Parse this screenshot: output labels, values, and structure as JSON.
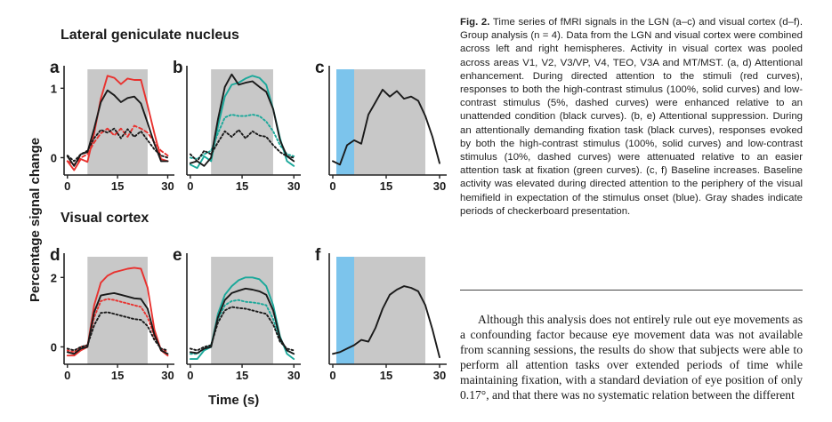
{
  "figure": {
    "section_top": "Lateral geniculate nucleus",
    "section_bottom": "Visual cortex",
    "ylabel": "Percentage signal change",
    "xlabel": "Time (s)"
  },
  "caption": {
    "label": "Fig. 2.",
    "text": " Time series of fMRI signals in the LGN (a–c) and visual cortex (d–f). Group analysis (n = 4). Data from the LGN and visual cortex were combined across left and right hemispheres. Activity in visual cortex was pooled across areas V1, V2, V3/VP, V4, TEO, V3A and MT/MST. (a, d) Attentional enhancement. During directed attention to the stimuli (red curves), responses to both the high-contrast stimulus (100%, solid curves) and low-contrast stimulus (5%, dashed curves) were enhanced relative to an unattended condition (black curves). (b, e) Attentional suppression. During an attentionally demanding fixation task (black curves), responses evoked by both the high-contrast stimulus (100%, solid curves) and low-contrast stimulus (10%, dashed curves) were attenuated relative to an easier attention task at fixation (green curves). (c, f) Baseline increases. Baseline activity was elevated during directed attention to the periphery of the visual hemifield in expectation of the stimulus onset (blue). Gray shades indicate periods of checkerboard presentation."
  },
  "body_text": "Although this analysis does not entirely rule out eye movements as a confounding factor because eye movement data was not available from scanning sessions, the results do show that subjects were able to perform all attention tasks over extended periods of time while maintaining fixation, with a standard deviation of eye position of only 0.17°, and that there was no systematic relation between the different",
  "colors": {
    "red": "#e8322f",
    "green": "#1aa89a",
    "black": "#1a1a1a",
    "gray_shade": "#c8c8c8",
    "blue_shade": "#7cc4ec"
  },
  "chart_data": [
    {
      "panel": "a",
      "type": "line",
      "xticks": [
        "0",
        "15",
        "30"
      ],
      "yticks": [
        "0",
        "1"
      ],
      "xlim": [
        -1,
        32
      ],
      "ylim": [
        -0.25,
        1.35
      ],
      "shade": [
        [
          6,
          24
        ]
      ],
      "series": [
        {
          "color": "red",
          "style": "solid",
          "x": [
            0,
            2,
            4,
            6,
            8,
            10,
            12,
            14,
            16,
            18,
            20,
            22,
            24,
            26,
            28,
            30
          ],
          "y": [
            -0.05,
            -0.18,
            -0.02,
            -0.06,
            0.35,
            0.85,
            1.18,
            1.15,
            1.06,
            1.14,
            1.12,
            1.12,
            0.75,
            0.35,
            -0.02,
            -0.05
          ]
        },
        {
          "color": "red",
          "style": "dashed",
          "x": [
            0,
            2,
            4,
            6,
            8,
            10,
            12,
            14,
            16,
            18,
            20,
            22,
            24,
            26,
            28,
            30
          ],
          "y": [
            -0.05,
            -0.1,
            0.0,
            0.05,
            0.22,
            0.35,
            0.42,
            0.32,
            0.42,
            0.3,
            0.46,
            0.42,
            0.36,
            0.22,
            0.1,
            0.03
          ]
        },
        {
          "color": "black",
          "style": "solid",
          "x": [
            0,
            2,
            4,
            6,
            8,
            10,
            12,
            14,
            16,
            18,
            20,
            22,
            24,
            26,
            28,
            30
          ],
          "y": [
            0.02,
            -0.12,
            0.05,
            0.08,
            0.42,
            0.8,
            0.97,
            0.9,
            0.8,
            0.86,
            0.88,
            0.78,
            0.5,
            0.2,
            -0.05,
            -0.05
          ]
        },
        {
          "color": "black",
          "style": "dotted",
          "x": [
            0,
            2,
            4,
            6,
            8,
            10,
            12,
            14,
            16,
            18,
            20,
            22,
            24,
            26,
            28,
            30
          ],
          "y": [
            0.03,
            -0.05,
            0.05,
            0.1,
            0.28,
            0.4,
            0.36,
            0.42,
            0.28,
            0.41,
            0.3,
            0.38,
            0.25,
            0.12,
            0.03,
            0.0
          ]
        }
      ]
    },
    {
      "panel": "b",
      "type": "line",
      "xticks": [
        "0",
        "15",
        "30"
      ],
      "yticks": [],
      "xlim": [
        -1,
        32
      ],
      "ylim": [
        -0.25,
        1.35
      ],
      "shade": [
        [
          6,
          24
        ]
      ],
      "series": [
        {
          "color": "green",
          "style": "solid",
          "x": [
            0,
            2,
            4,
            6,
            8,
            10,
            12,
            14,
            16,
            18,
            20,
            22,
            24,
            26,
            28,
            30
          ],
          "y": [
            -0.1,
            -0.15,
            0.02,
            -0.05,
            0.45,
            0.88,
            1.05,
            1.08,
            1.14,
            1.18,
            1.15,
            1.05,
            0.7,
            0.28,
            -0.05,
            -0.12
          ]
        },
        {
          "color": "green",
          "style": "dotted",
          "x": [
            0,
            2,
            4,
            6,
            8,
            10,
            12,
            14,
            16,
            18,
            20,
            22,
            24,
            26,
            28,
            30
          ],
          "y": [
            0.0,
            -0.02,
            0.05,
            0.1,
            0.35,
            0.58,
            0.62,
            0.6,
            0.6,
            0.62,
            0.6,
            0.52,
            0.38,
            0.18,
            0.05,
            0.02
          ]
        },
        {
          "color": "black",
          "style": "solid",
          "x": [
            0,
            2,
            4,
            6,
            8,
            10,
            12,
            14,
            16,
            18,
            20,
            22,
            24,
            26,
            28,
            30
          ],
          "y": [
            -0.08,
            -0.05,
            -0.12,
            0.0,
            0.55,
            1.02,
            1.2,
            1.05,
            1.08,
            1.1,
            1.02,
            0.95,
            0.7,
            0.25,
            0.02,
            -0.05
          ]
        },
        {
          "color": "black",
          "style": "dotted",
          "x": [
            0,
            2,
            4,
            6,
            8,
            10,
            12,
            14,
            16,
            18,
            20,
            22,
            24,
            26,
            28,
            30
          ],
          "y": [
            0.05,
            -0.05,
            0.1,
            0.05,
            0.22,
            0.38,
            0.3,
            0.4,
            0.28,
            0.38,
            0.32,
            0.3,
            0.18,
            0.08,
            0.02,
            0.0
          ]
        }
      ]
    },
    {
      "panel": "c",
      "type": "line",
      "xticks": [
        "0",
        "15",
        "30"
      ],
      "yticks": [],
      "xlim": [
        -1,
        32
      ],
      "ylim": [
        -0.25,
        1.35
      ],
      "shade": [
        [
          6,
          26
        ]
      ],
      "blue_shade": [
        [
          1,
          6
        ]
      ],
      "series": [
        {
          "color": "black",
          "style": "solid",
          "x": [
            0,
            2,
            4,
            6,
            8,
            10,
            12,
            14,
            16,
            18,
            20,
            22,
            24,
            26,
            28,
            30
          ],
          "y": [
            -0.05,
            -0.1,
            0.18,
            0.25,
            0.2,
            0.62,
            0.8,
            0.98,
            0.88,
            0.96,
            0.85,
            0.88,
            0.82,
            0.6,
            0.3,
            -0.08
          ]
        }
      ]
    },
    {
      "panel": "d",
      "type": "line",
      "xticks": [
        "0",
        "15",
        "30"
      ],
      "yticks": [
        "0",
        "2"
      ],
      "xlim": [
        -1,
        32
      ],
      "ylim": [
        -0.5,
        2.75
      ],
      "shade": [
        [
          6,
          24
        ]
      ],
      "series": [
        {
          "color": "red",
          "style": "solid",
          "x": [
            0,
            2,
            4,
            6,
            8,
            10,
            12,
            14,
            16,
            18,
            20,
            22,
            24,
            26,
            28,
            30
          ],
          "y": [
            -0.25,
            -0.25,
            -0.1,
            0.0,
            1.2,
            1.85,
            2.05,
            2.15,
            2.2,
            2.25,
            2.28,
            2.25,
            1.7,
            0.5,
            -0.1,
            -0.25
          ]
        },
        {
          "color": "red",
          "style": "dotted",
          "x": [
            0,
            2,
            4,
            6,
            8,
            10,
            12,
            14,
            16,
            18,
            20,
            22,
            24,
            26,
            28,
            30
          ],
          "y": [
            -0.1,
            -0.15,
            0.0,
            0.05,
            0.85,
            1.32,
            1.38,
            1.35,
            1.3,
            1.25,
            1.2,
            1.15,
            0.85,
            0.3,
            -0.05,
            -0.15
          ]
        },
        {
          "color": "black",
          "style": "solid",
          "x": [
            0,
            2,
            4,
            6,
            8,
            10,
            12,
            14,
            16,
            18,
            20,
            22,
            24,
            26,
            28,
            30
          ],
          "y": [
            -0.15,
            -0.2,
            -0.05,
            0.0,
            1.0,
            1.48,
            1.52,
            1.55,
            1.5,
            1.45,
            1.4,
            1.38,
            1.1,
            0.35,
            -0.1,
            -0.2
          ]
        },
        {
          "color": "black",
          "style": "dotted",
          "x": [
            0,
            2,
            4,
            6,
            8,
            10,
            12,
            14,
            16,
            18,
            20,
            22,
            24,
            26,
            28,
            30
          ],
          "y": [
            -0.05,
            -0.1,
            0.0,
            0.05,
            0.62,
            0.98,
            1.0,
            0.95,
            0.9,
            0.85,
            0.8,
            0.78,
            0.6,
            0.2,
            -0.05,
            -0.1
          ]
        }
      ]
    },
    {
      "panel": "e",
      "type": "line",
      "xticks": [
        "0",
        "15",
        "30"
      ],
      "yticks": [],
      "xlim": [
        -1,
        32
      ],
      "ylim": [
        -0.5,
        2.75
      ],
      "shade": [
        [
          6,
          24
        ]
      ],
      "series": [
        {
          "color": "green",
          "style": "solid",
          "x": [
            0,
            2,
            4,
            6,
            8,
            10,
            12,
            14,
            16,
            18,
            20,
            22,
            24,
            26,
            28,
            30
          ],
          "y": [
            -0.35,
            -0.35,
            -0.1,
            0.0,
            0.95,
            1.5,
            1.75,
            1.92,
            2.0,
            2.0,
            1.95,
            1.75,
            1.2,
            0.3,
            -0.2,
            -0.35
          ]
        },
        {
          "color": "green",
          "style": "dotted",
          "x": [
            0,
            2,
            4,
            6,
            8,
            10,
            12,
            14,
            16,
            18,
            20,
            22,
            24,
            26,
            28,
            30
          ],
          "y": [
            -0.2,
            -0.2,
            -0.05,
            0.05,
            0.8,
            1.2,
            1.32,
            1.35,
            1.3,
            1.28,
            1.25,
            1.2,
            0.8,
            0.2,
            -0.1,
            -0.2
          ]
        },
        {
          "color": "black",
          "style": "solid",
          "x": [
            0,
            2,
            4,
            6,
            8,
            10,
            12,
            14,
            16,
            18,
            20,
            22,
            24,
            26,
            28,
            30
          ],
          "y": [
            -0.15,
            -0.18,
            -0.05,
            0.0,
            0.85,
            1.35,
            1.55,
            1.62,
            1.68,
            1.65,
            1.6,
            1.5,
            1.05,
            0.25,
            -0.1,
            -0.2
          ]
        },
        {
          "color": "black",
          "style": "dotted",
          "x": [
            0,
            2,
            4,
            6,
            8,
            10,
            12,
            14,
            16,
            18,
            20,
            22,
            24,
            26,
            28,
            30
          ],
          "y": [
            -0.05,
            -0.1,
            0.0,
            0.05,
            0.7,
            1.05,
            1.15,
            1.12,
            1.1,
            1.05,
            1.0,
            0.95,
            0.65,
            0.15,
            -0.05,
            -0.1
          ]
        }
      ]
    },
    {
      "panel": "f",
      "type": "line",
      "xticks": [
        "0",
        "15",
        "30"
      ],
      "yticks": [],
      "xlim": [
        -1,
        32
      ],
      "ylim": [
        -0.5,
        2.75
      ],
      "shade": [
        [
          6,
          26
        ]
      ],
      "blue_shade": [
        [
          1,
          6
        ]
      ],
      "series": [
        {
          "color": "black",
          "style": "solid",
          "x": [
            0,
            2,
            4,
            6,
            8,
            10,
            12,
            14,
            16,
            18,
            20,
            22,
            24,
            26,
            28,
            30
          ],
          "y": [
            -0.2,
            -0.15,
            -0.05,
            0.05,
            0.2,
            0.15,
            0.55,
            1.1,
            1.5,
            1.65,
            1.75,
            1.7,
            1.6,
            1.2,
            0.5,
            -0.3
          ]
        }
      ]
    }
  ]
}
